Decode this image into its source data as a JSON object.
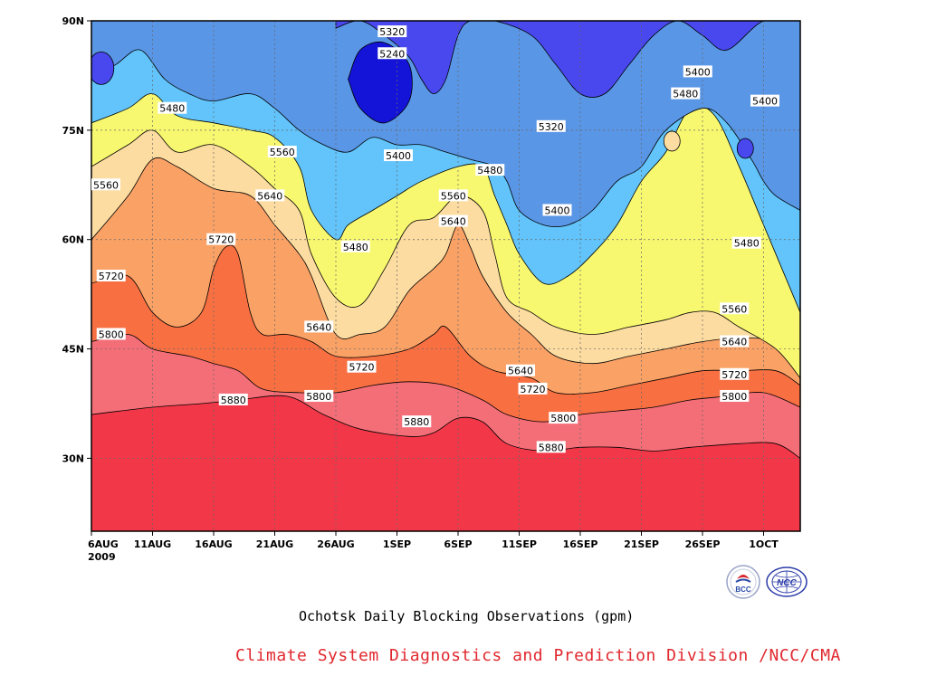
{
  "title": "Ochotsk Daily Blocking Observations (gpm)",
  "credit": "Climate System Diagnostics and Prediction Division /NCC/CMA",
  "logos": {
    "bcc": "BCC",
    "ncc": "NCC"
  },
  "colors": {
    "fill_5240": "#1414d8",
    "fill_5320": "#4848ee",
    "fill_5400": "#5a96e6",
    "fill_5480": "#62c4fa",
    "fill_5560": "#f8f870",
    "fill_5640": "#fcdca0",
    "fill_5720": "#faa266",
    "fill_5800": "#f87042",
    "fill_5880": "#f46e78",
    "fill_max": "#f23848",
    "credit": "#e0282e",
    "bcc_logo": "#2a4aa8",
    "ncc_logo": "#2a3aa8"
  },
  "chart_data": {
    "type": "heatmap",
    "subtype": "filled-contour time-latitude section",
    "xlabel": "",
    "ylabel": "",
    "year_label": "2009",
    "x_tick_labels": [
      "6AUG",
      "11AUG",
      "16AUG",
      "21AUG",
      "26AUG",
      "1SEP",
      "6SEP",
      "11SEP",
      "16SEP",
      "21SEP",
      "26SEP",
      "1OCT"
    ],
    "y_tick_labels": [
      "90N",
      "75N",
      "60N",
      "45N",
      "30N"
    ],
    "ylim": [
      20,
      90
    ],
    "x_range_days": [
      0,
      58
    ],
    "grid": true,
    "contour_levels": [
      5240,
      5320,
      5400,
      5480,
      5560,
      5640,
      5720,
      5800,
      5880
    ],
    "contours": [
      {
        "level": 5880,
        "points": [
          [
            0,
            36
          ],
          [
            5,
            37
          ],
          [
            9,
            37.5
          ],
          [
            12,
            38
          ],
          [
            16,
            38.5
          ],
          [
            19,
            36
          ],
          [
            22,
            34
          ],
          [
            26,
            33
          ],
          [
            28,
            33.5
          ],
          [
            30,
            35.5
          ],
          [
            32,
            35
          ],
          [
            34,
            32
          ],
          [
            37,
            31
          ],
          [
            40,
            31.5
          ],
          [
            43,
            31.5
          ],
          [
            46,
            31
          ],
          [
            49,
            31.5
          ],
          [
            53,
            32
          ],
          [
            56,
            32
          ],
          [
            58,
            30
          ]
        ]
      },
      {
        "level": 5800,
        "points": [
          [
            0,
            46
          ],
          [
            3,
            47
          ],
          [
            5,
            45
          ],
          [
            8,
            44
          ],
          [
            10,
            43
          ],
          [
            12,
            42
          ],
          [
            14,
            39.5
          ],
          [
            17,
            39
          ],
          [
            20,
            39
          ],
          [
            23,
            40
          ],
          [
            26,
            40.5
          ],
          [
            29,
            40
          ],
          [
            32,
            38
          ],
          [
            34,
            36
          ],
          [
            37,
            35
          ],
          [
            40,
            36
          ],
          [
            43,
            36.5
          ],
          [
            46,
            37
          ],
          [
            49,
            38
          ],
          [
            52,
            38.5
          ],
          [
            55,
            39
          ],
          [
            58,
            37
          ]
        ]
      },
      {
        "level": 5720,
        "points": [
          [
            0,
            54
          ],
          [
            3,
            55
          ],
          [
            5,
            50
          ],
          [
            7,
            48
          ],
          [
            9,
            50
          ],
          [
            10,
            56
          ],
          [
            11,
            59
          ],
          [
            12,
            58
          ],
          [
            13,
            50
          ],
          [
            14,
            47
          ],
          [
            16,
            47
          ],
          [
            18,
            46
          ],
          [
            20,
            44
          ],
          [
            23,
            44
          ],
          [
            26,
            45
          ],
          [
            28,
            47
          ],
          [
            29,
            48
          ],
          [
            31,
            44
          ],
          [
            33,
            42
          ],
          [
            36,
            41
          ],
          [
            38,
            39
          ],
          [
            41,
            39
          ],
          [
            44,
            40
          ],
          [
            47,
            41
          ],
          [
            50,
            42
          ],
          [
            53,
            42
          ],
          [
            56,
            42
          ],
          [
            58,
            40
          ]
        ]
      },
      {
        "level": 5640,
        "points": [
          [
            0,
            60
          ],
          [
            3,
            66
          ],
          [
            5,
            71
          ],
          [
            7,
            70
          ],
          [
            10,
            67
          ],
          [
            13,
            66
          ],
          [
            15,
            62
          ],
          [
            17,
            58
          ],
          [
            18,
            55
          ],
          [
            20,
            47
          ],
          [
            22,
            47
          ],
          [
            24,
            48
          ],
          [
            26,
            53
          ],
          [
            28,
            56
          ],
          [
            29,
            58
          ],
          [
            30,
            62
          ],
          [
            31,
            59
          ],
          [
            32,
            55
          ],
          [
            34,
            50
          ],
          [
            36,
            47
          ],
          [
            38,
            44
          ],
          [
            41,
            43
          ],
          [
            44,
            44
          ],
          [
            47,
            45
          ],
          [
            50,
            46
          ],
          [
            53,
            46.5
          ],
          [
            56,
            46
          ],
          [
            58,
            43
          ]
        ]
      },
      {
        "level": 5560,
        "points": [
          [
            0,
            70
          ],
          [
            3,
            73
          ],
          [
            5,
            75
          ],
          [
            7,
            72
          ],
          [
            10,
            73
          ],
          [
            13,
            70
          ],
          [
            15,
            67
          ],
          [
            17,
            64
          ],
          [
            18,
            58
          ],
          [
            20,
            52
          ],
          [
            22,
            51
          ],
          [
            24,
            56
          ],
          [
            26,
            62
          ],
          [
            28,
            63
          ],
          [
            30,
            66
          ],
          [
            32,
            64
          ],
          [
            33,
            58
          ],
          [
            34,
            52
          ],
          [
            36,
            50
          ],
          [
            38,
            48
          ],
          [
            41,
            47
          ],
          [
            44,
            48
          ],
          [
            47,
            49
          ],
          [
            49,
            50
          ],
          [
            51,
            50
          ],
          [
            53,
            48
          ],
          [
            56,
            45
          ],
          [
            58,
            41
          ]
        ]
      },
      {
        "level": 5480,
        "points": [
          [
            0,
            76
          ],
          [
            3,
            78
          ],
          [
            5,
            80
          ],
          [
            7,
            77
          ],
          [
            10,
            76
          ],
          [
            13,
            75
          ],
          [
            15,
            74
          ],
          [
            17,
            70
          ],
          [
            18,
            64
          ],
          [
            20,
            60
          ],
          [
            21,
            62
          ],
          [
            23,
            64
          ],
          [
            25,
            66
          ],
          [
            27,
            68
          ],
          [
            30,
            70
          ],
          [
            32,
            70
          ],
          [
            33,
            66
          ],
          [
            34,
            62
          ],
          [
            35,
            58
          ],
          [
            37,
            54
          ],
          [
            39,
            55
          ],
          [
            41,
            58
          ],
          [
            43,
            62
          ],
          [
            45,
            68
          ],
          [
            47,
            72
          ],
          [
            49,
            78
          ],
          [
            51,
            77
          ],
          [
            53,
            70
          ],
          [
            55,
            62
          ],
          [
            58,
            50
          ]
        ]
      },
      {
        "level": 5400,
        "points": [
          [
            0,
            82
          ],
          [
            2,
            84
          ],
          [
            4,
            86
          ],
          [
            6,
            82
          ],
          [
            8,
            80
          ],
          [
            10,
            79
          ],
          [
            13,
            80
          ],
          [
            15,
            78
          ],
          [
            17,
            75
          ],
          [
            19,
            73
          ],
          [
            21,
            72
          ],
          [
            23,
            74
          ],
          [
            25,
            73
          ],
          [
            27,
            73
          ],
          [
            29,
            72
          ],
          [
            31,
            71
          ],
          [
            33,
            70
          ],
          [
            34,
            68
          ],
          [
            35,
            64
          ],
          [
            37,
            62
          ],
          [
            39,
            62
          ],
          [
            41,
            64
          ],
          [
            43,
            68
          ],
          [
            45,
            70
          ],
          [
            47,
            75
          ],
          [
            50,
            78
          ],
          [
            52,
            76
          ],
          [
            54,
            71
          ],
          [
            55,
            68
          ],
          [
            56,
            66
          ],
          [
            58,
            64
          ]
        ]
      },
      {
        "level": 5320,
        "points": [
          [
            20,
            89
          ],
          [
            22,
            90
          ],
          [
            24,
            88
          ],
          [
            26,
            85
          ],
          [
            27,
            82
          ],
          [
            28,
            80
          ],
          [
            29,
            82
          ],
          [
            30,
            88
          ],
          [
            31,
            90
          ],
          [
            33,
            90
          ],
          [
            36,
            88
          ],
          [
            38,
            84
          ],
          [
            40,
            80
          ],
          [
            42,
            80
          ],
          [
            44,
            84
          ],
          [
            46,
            88
          ],
          [
            48,
            90
          ],
          [
            50,
            88
          ],
          [
            52,
            86
          ],
          [
            55,
            90
          ],
          [
            58,
            90
          ]
        ]
      },
      {
        "level": 5240,
        "points": [
          [
            21,
            82
          ],
          [
            22,
            78
          ],
          [
            24,
            76
          ],
          [
            26,
            79
          ],
          [
            26,
            84
          ],
          [
            24,
            87
          ],
          [
            22,
            86
          ]
        ]
      }
    ],
    "contour_labels": [
      {
        "text": "5880",
        "x": 10.5,
        "y": 38
      },
      {
        "text": "5880",
        "x": 25.5,
        "y": 35
      },
      {
        "text": "5880",
        "x": 36.5,
        "y": 31.5
      },
      {
        "text": "5800",
        "x": 0.5,
        "y": 47
      },
      {
        "text": "5800",
        "x": 17.5,
        "y": 38.5
      },
      {
        "text": "5800",
        "x": 37.5,
        "y": 35.5
      },
      {
        "text": "5800",
        "x": 51.5,
        "y": 38.5
      },
      {
        "text": "5720",
        "x": 0.5,
        "y": 55
      },
      {
        "text": "5720",
        "x": 9.5,
        "y": 60
      },
      {
        "text": "5720",
        "x": 21,
        "y": 42.5
      },
      {
        "text": "5720",
        "x": 35,
        "y": 39.5
      },
      {
        "text": "5720",
        "x": 51.5,
        "y": 41.5
      },
      {
        "text": "5640",
        "x": 13.5,
        "y": 66
      },
      {
        "text": "5640",
        "x": 17.5,
        "y": 48
      },
      {
        "text": "5640",
        "x": 28.5,
        "y": 62.5
      },
      {
        "text": "5640",
        "x": 34,
        "y": 42
      },
      {
        "text": "5640",
        "x": 51.5,
        "y": 46
      },
      {
        "text": "5560",
        "x": 0,
        "y": 67.5
      },
      {
        "text": "5560",
        "x": 14.5,
        "y": 72
      },
      {
        "text": "5560",
        "x": 28.5,
        "y": 66
      },
      {
        "text": "5560",
        "x": 51.5,
        "y": 50.5
      },
      {
        "text": "5480",
        "x": 5.5,
        "y": 78
      },
      {
        "text": "5480",
        "x": 20.5,
        "y": 59
      },
      {
        "text": "5480",
        "x": 31.5,
        "y": 69.5
      },
      {
        "text": "5480",
        "x": 47.5,
        "y": 80
      },
      {
        "text": "5480",
        "x": 52.5,
        "y": 59.5
      },
      {
        "text": "5400",
        "x": 24,
        "y": 71.5
      },
      {
        "text": "5400",
        "x": 37,
        "y": 64
      },
      {
        "text": "5400",
        "x": 48.5,
        "y": 83
      },
      {
        "text": "5400",
        "x": 54,
        "y": 79
      },
      {
        "text": "5320",
        "x": 23.5,
        "y": 88.5
      },
      {
        "text": "5320",
        "x": 36.5,
        "y": 75.5
      },
      {
        "text": "5240",
        "x": 23.5,
        "y": 85.5
      }
    ],
    "minima": [
      {
        "level": 5400,
        "x": 0.8,
        "y": 83.5
      },
      {
        "level": 5400,
        "x": 53.5,
        "y": 72.5
      },
      {
        "level": 5560,
        "x": 47.5,
        "y": 73.5
      }
    ]
  }
}
